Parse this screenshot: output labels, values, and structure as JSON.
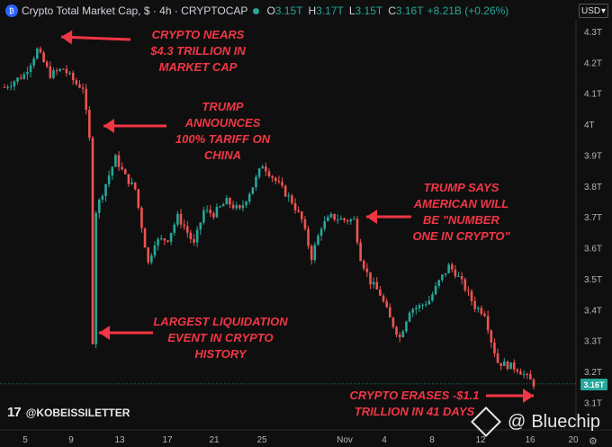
{
  "header": {
    "title": "Crypto Total Market Cap, $ · 4h · CRYPTOCAP",
    "ohlc": [
      {
        "k": "O",
        "v": "3.15T"
      },
      {
        "k": "H",
        "v": "3.17T"
      },
      {
        "k": "L",
        "v": "3.15T"
      },
      {
        "k": "C",
        "v": "3.16T"
      }
    ],
    "change": "+8.21B (+0.26%)",
    "currency": "USD"
  },
  "annotations": [
    {
      "text": "CRYPTO NEARS\n$4.3 TRILLION IN\nMARKET CAP"
    },
    {
      "text": "TRUMP\nANNOUNCES\n100% TARIFF ON\nCHINA"
    },
    {
      "text": "TRUMP SAYS\nAMERICAN WILL\nBE \"NUMBER\nONE IN CRYPTO\""
    },
    {
      "text": "LARGEST LIQUIDATION\nEVENT IN CRYPTO\nHISTORY"
    },
    {
      "text": "CRYPTO ERASES -$1.1\nTRILLION IN 41 DAYS"
    }
  ],
  "credit": "@KOBEISSILETTER",
  "tv_logo": "17",
  "watermark": "Bluechip",
  "current_price_label": "3.16T",
  "colors": {
    "up": "#26a69a",
    "down": "#ef5350",
    "annotation": "#f23645",
    "background": "#0f0f0f"
  },
  "chart_data": {
    "type": "candlestick",
    "title": "Crypto Total Market Cap, $ · 4h · CRYPTOCAP",
    "x_tick_labels": [
      "5",
      "9",
      "13",
      "17",
      "21",
      "25",
      "Nov",
      "4",
      "8",
      "12",
      "16",
      "20"
    ],
    "y_tick_labels": [
      "4.3T",
      "4.2T",
      "4.1T",
      "4T",
      "3.9T",
      "3.8T",
      "3.7T",
      "3.6T",
      "3.5T",
      "3.4T",
      "3.3T",
      "3.2T",
      "3.1T"
    ],
    "y_range_trillions": [
      3.08,
      4.33
    ],
    "current_value_trillions": 3.16,
    "approx_path_trillions": [
      [
        0,
        4.12
      ],
      [
        6,
        4.16
      ],
      [
        10,
        4.24
      ],
      [
        14,
        4.16
      ],
      [
        18,
        4.18
      ],
      [
        22,
        4.13
      ],
      [
        24,
        4.12
      ],
      [
        26,
        3.95
      ],
      [
        27,
        3.3
      ],
      [
        28,
        3.72
      ],
      [
        30,
        3.78
      ],
      [
        34,
        3.89
      ],
      [
        37,
        3.83
      ],
      [
        40,
        3.79
      ],
      [
        44,
        3.55
      ],
      [
        46,
        3.62
      ],
      [
        50,
        3.63
      ],
      [
        53,
        3.7
      ],
      [
        55,
        3.67
      ],
      [
        58,
        3.61
      ],
      [
        61,
        3.72
      ],
      [
        64,
        3.71
      ],
      [
        68,
        3.75
      ],
      [
        72,
        3.72
      ],
      [
        76,
        3.8
      ],
      [
        79,
        3.87
      ],
      [
        82,
        3.83
      ],
      [
        85,
        3.79
      ],
      [
        88,
        3.75
      ],
      [
        91,
        3.69
      ],
      [
        94,
        3.57
      ],
      [
        97,
        3.67
      ],
      [
        100,
        3.7
      ],
      [
        104,
        3.69
      ],
      [
        107,
        3.69
      ],
      [
        109,
        3.57
      ],
      [
        112,
        3.49
      ],
      [
        115,
        3.45
      ],
      [
        118,
        3.37
      ],
      [
        121,
        3.31
      ],
      [
        124,
        3.4
      ],
      [
        127,
        3.41
      ],
      [
        130,
        3.43
      ],
      [
        133,
        3.49
      ],
      [
        136,
        3.54
      ],
      [
        138,
        3.52
      ],
      [
        141,
        3.47
      ],
      [
        144,
        3.41
      ],
      [
        147,
        3.39
      ],
      [
        149,
        3.3
      ],
      [
        151,
        3.23
      ],
      [
        154,
        3.22
      ],
      [
        157,
        3.21
      ],
      [
        160,
        3.18
      ],
      [
        162,
        3.16
      ]
    ]
  }
}
